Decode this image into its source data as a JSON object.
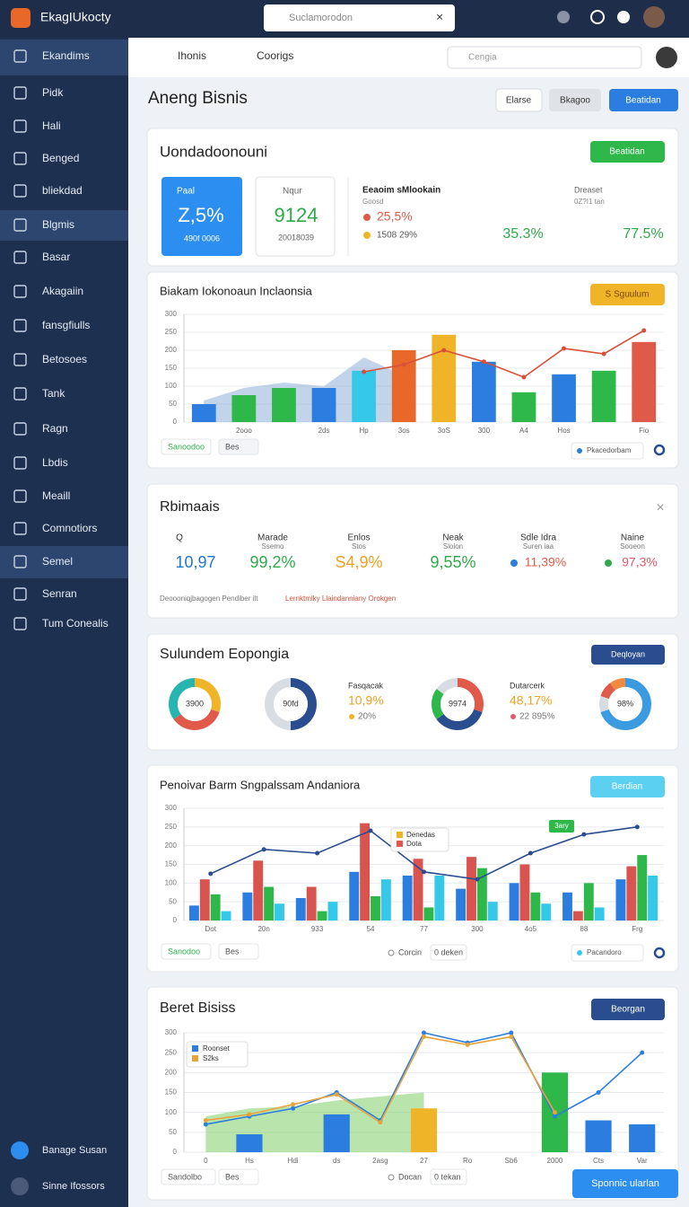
{
  "topbar": {
    "brand": "EkagIUkocty",
    "search": "Suclamorodon"
  },
  "sidebar": {
    "items": [
      "Ekandims",
      "Pidk",
      "Hali",
      "Benged",
      "bliekdad",
      "Blgmis",
      "Basar",
      "Akagaiin",
      "fansgfiulls",
      "Betosoes",
      "Tank",
      "Ragn",
      "Lbdis",
      "Meaill",
      "Comnotiors",
      "Semel",
      "Senran",
      "Tum Conealis"
    ],
    "footer": [
      "Banage Susan",
      "Sinne Ifossors"
    ]
  },
  "tabs": {
    "items": [
      "Ihonis",
      "Coorigs"
    ],
    "search": "Cengia"
  },
  "page": {
    "title": "Aneng Bisnis",
    "buttons": [
      "Elarse",
      "Bkagoo",
      "Beatidan"
    ]
  },
  "overview": {
    "title": "Uondadoonouni",
    "button": "Beatidan",
    "cards": [
      {
        "label": "Paal",
        "value": "Z,5%",
        "sub": "490f 0006"
      },
      {
        "label": "Nqur",
        "value": "9124",
        "sub": "20018039"
      }
    ],
    "legend": {
      "title": "Eeaoim sMlookain",
      "subtitle": "Goosd",
      "items": [
        {
          "label": "25,5%",
          "color": "#e05a4a"
        },
        {
          "label": "1508 29%",
          "color": "#f0b429"
        }
      ]
    },
    "stats": {
      "value1": "35.3%",
      "label": "Dreaset",
      "sub": "0Z?I1 tan",
      "value2": "77.5%"
    }
  },
  "chart1": {
    "type": "bar",
    "title": "Biakam Iokonoaun Inclaonsia",
    "button": "S Sguulum",
    "categories": [
      null,
      "2ooo",
      null,
      "2ds",
      "Hp",
      "3os",
      "3oS",
      "300",
      "A4",
      "Hos",
      null,
      "Fio"
    ],
    "values": [
      50,
      75,
      95,
      95,
      143,
      200,
      243,
      168,
      83,
      133,
      143,
      223
    ],
    "colors": [
      "#2b7de0",
      "#2eb84a",
      "#2eb84a",
      "#2b7de0",
      "#35c8e8",
      "#e8682a",
      "#f0b429",
      "#2b7de0",
      "#2eb84a",
      "#2b7de0",
      "#2eb84a",
      "#e05a4a"
    ],
    "area": {
      "color": "#8fb0d8",
      "values": [
        60,
        95,
        110,
        100,
        180,
        130,
        null,
        null,
        null,
        null,
        null,
        null
      ]
    },
    "line": {
      "name": "Pkacedorbam",
      "color": "#d9503a",
      "values": [
        null,
        null,
        null,
        null,
        140,
        160,
        200,
        168,
        125,
        205,
        190,
        255
      ]
    },
    "ylim": [
      0,
      300
    ],
    "yticks": [
      0,
      50,
      100,
      150,
      200,
      250,
      300
    ],
    "grid": true,
    "footer": [
      "Sanoodoo",
      "Bes"
    ]
  },
  "kpis": {
    "title": "Rbimaais",
    "items": [
      {
        "label": "Q",
        "value": "10,97",
        "color": "#1f77d4"
      },
      {
        "label": "Marade",
        "sub": "Ssemo",
        "value": "99,2%",
        "color": "#2eaa4a"
      },
      {
        "label": "Enlos",
        "sub": "Stos",
        "value": "S4,9%",
        "color": "#f0a020"
      },
      {
        "label": "Neak",
        "sub": "Sloion",
        "value": "9,55%",
        "color": "#2eaa4a"
      },
      {
        "label": "Sdle Idra",
        "sub": "Suren iaa",
        "value": "11,39%",
        "color": "#e05a4a",
        "dot": "#2b7de0"
      },
      {
        "label": "Naine",
        "sub": "Sooeon",
        "value": "97,3%",
        "color": "#e05a6a",
        "dot": "#2eaa4a"
      }
    ],
    "note": "Deoooniqjbagogen Pendiber ilt",
    "note_link": "Lernktmlky Llaindanniany Orokgen"
  },
  "donuts": {
    "title": "Sulundem Eopongia",
    "button": "Deqloyan",
    "items": [
      {
        "center": "3900",
        "values": [
          30,
          35,
          35
        ],
        "colors": [
          "#f0b429",
          "#e05a4a",
          "#26b5b0"
        ]
      },
      {
        "center": "90fd",
        "values": [
          50,
          50
        ],
        "colors": [
          "#2a4d8f",
          "#d8dde4"
        ]
      },
      {
        "center": "9974",
        "values": [
          30,
          35,
          20,
          15
        ],
        "colors": [
          "#e05a4a",
          "#2a4d8f",
          "#2eb84a",
          "#d8dde4"
        ]
      },
      {
        "center": "98%",
        "values": [
          70,
          10,
          10,
          10
        ],
        "colors": [
          "#3b9be0",
          "#d8dde4",
          "#e05a4a",
          "#f08a40"
        ]
      }
    ],
    "texts": [
      {
        "label": "Fasqacak",
        "value": "10,9%",
        "sub": "20%",
        "color": "#f0a020",
        "dot": "#f0b429"
      },
      {
        "label": "Dutarcerk",
        "value": "48,17%",
        "sub": "22 895%",
        "color": "#f0a020",
        "dot": "#e05a6a"
      }
    ]
  },
  "chart2": {
    "type": "bar",
    "title": "Penoivar Barm Sngpalssam Andaniora",
    "button": "Berdian",
    "categories": [
      "Dot",
      "20n",
      "933",
      "54",
      "77",
      "300",
      "4o5",
      "88",
      "Frg"
    ],
    "series": [
      {
        "color": "#2b7de0",
        "values": [
          40,
          75,
          60,
          130,
          120,
          85,
          100,
          75,
          110
        ]
      },
      {
        "color": "#d9534f",
        "values": [
          110,
          160,
          90,
          260,
          165,
          170,
          150,
          25,
          145
        ]
      },
      {
        "color": "#2eb84a",
        "values": [
          70,
          90,
          25,
          65,
          35,
          140,
          75,
          100,
          175
        ]
      },
      {
        "color": "#35c8e8",
        "values": [
          25,
          45,
          50,
          110,
          120,
          50,
          45,
          35,
          120
        ]
      }
    ],
    "line": {
      "color": "#2a4d8f",
      "values": [
        125,
        190,
        180,
        240,
        130,
        110,
        180,
        230,
        250
      ]
    },
    "legend": [
      "Denedas",
      "Dota"
    ],
    "tag": "3ary",
    "ylim": [
      0,
      300
    ],
    "yticks": [
      0,
      50,
      100,
      150,
      200,
      250,
      300
    ],
    "grid": true,
    "footer": [
      "Sanodoo",
      "Bes",
      "Corcin",
      "0 deken",
      "Pacandoro"
    ]
  },
  "chart3": {
    "type": "bar",
    "title": "Beret Bisiss",
    "button": "Beorgan",
    "categories": [
      "0",
      "Hs",
      "Hdi",
      "ds",
      "2asg",
      "27",
      "Ro",
      "Sb6",
      "2000",
      "Cts",
      "Var"
    ],
    "values": [
      null,
      45,
      null,
      95,
      null,
      110,
      null,
      null,
      200,
      80,
      70
    ],
    "colors": [
      "#2b7de0",
      "#2b7de0",
      "#2b7de0",
      "#2b7de0",
      "#2b7de0",
      "#f0b429",
      "#2b7de0",
      "#2b7de0",
      "#2eb84a",
      "#2b7de0",
      "#2b7de0"
    ],
    "area": {
      "color": "#7fcf6a",
      "values": [
        90,
        110,
        115,
        130,
        140,
        150,
        null,
        null,
        null,
        null,
        null
      ]
    },
    "series": [
      {
        "name": "Roonset",
        "color": "#2b7de0",
        "values": [
          70,
          90,
          110,
          150,
          80,
          300,
          275,
          300,
          90,
          150,
          250
        ]
      },
      {
        "name": "S2ks",
        "color": "#e8a33a",
        "values": [
          80,
          95,
          120,
          145,
          75,
          290,
          270,
          290,
          100,
          null,
          null
        ]
      }
    ],
    "ylim": [
      0,
      300
    ],
    "yticks": [
      0,
      50,
      100,
      150,
      200,
      250,
      300
    ],
    "grid": true,
    "footer": [
      "Sandolbo",
      "Bes",
      "Docan",
      "0 tekan"
    ],
    "corner_button": "Sponnic ularlan"
  }
}
